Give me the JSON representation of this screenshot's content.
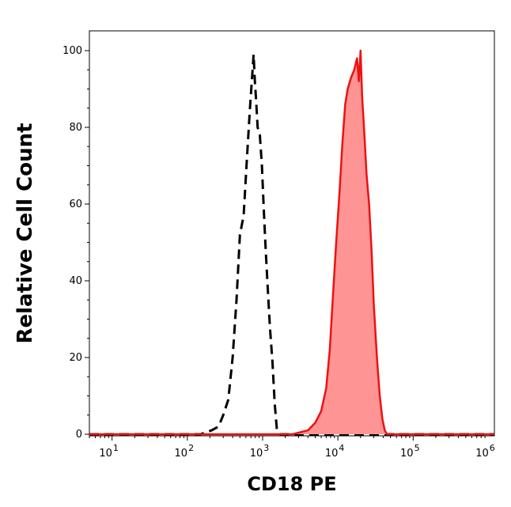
{
  "chart_data": {
    "type": "area",
    "xlabel": "CD18 PE",
    "ylabel": "Relative Cell Count",
    "xscale": "log",
    "xlim": [
      5,
      1200000
    ],
    "ylim": [
      0,
      100
    ],
    "grid": false,
    "y_ticks": [
      0,
      20,
      40,
      60,
      80,
      100
    ],
    "x_ticks": [
      {
        "value": 10,
        "base": "10",
        "exp": "1"
      },
      {
        "value": 100,
        "base": "10",
        "exp": "2"
      },
      {
        "value": 1000,
        "base": "10",
        "exp": "3"
      },
      {
        "value": 10000,
        "base": "10",
        "exp": "4"
      },
      {
        "value": 100000,
        "base": "10",
        "exp": "5"
      },
      {
        "value": 1000000,
        "base": "10",
        "exp": "6"
      }
    ],
    "series": [
      {
        "style": "dashed",
        "color": "#000000",
        "points": [
          [
            5,
            0
          ],
          [
            150,
            0
          ],
          [
            210,
            1
          ],
          [
            260,
            2
          ],
          [
            300,
            5
          ],
          [
            350,
            9
          ],
          [
            400,
            20
          ],
          [
            450,
            35
          ],
          [
            500,
            52
          ],
          [
            560,
            57
          ],
          [
            620,
            72
          ],
          [
            680,
            85
          ],
          [
            730,
            94
          ],
          [
            760,
            99
          ],
          [
            790,
            92
          ],
          [
            820,
            87
          ],
          [
            860,
            80
          ],
          [
            920,
            78
          ],
          [
            980,
            70
          ],
          [
            1040,
            58
          ],
          [
            1100,
            48
          ],
          [
            1170,
            38
          ],
          [
            1250,
            28
          ],
          [
            1350,
            19
          ],
          [
            1450,
            8
          ],
          [
            1550,
            1
          ],
          [
            1700,
            0
          ],
          [
            1200000,
            0
          ]
        ]
      },
      {
        "style": "filled",
        "color": "#ee1111",
        "fill": "#ff9494",
        "points": [
          [
            5,
            0
          ],
          [
            2500,
            0
          ],
          [
            4000,
            1
          ],
          [
            5000,
            3
          ],
          [
            6000,
            6
          ],
          [
            7000,
            12
          ],
          [
            7800,
            22
          ],
          [
            8600,
            36
          ],
          [
            9500,
            50
          ],
          [
            10500,
            63
          ],
          [
            11500,
            76
          ],
          [
            12500,
            86
          ],
          [
            13500,
            90
          ],
          [
            15000,
            93
          ],
          [
            16500,
            95
          ],
          [
            18000,
            98
          ],
          [
            19000,
            92
          ],
          [
            20000,
            100
          ],
          [
            21000,
            88
          ],
          [
            22500,
            78
          ],
          [
            24000,
            68
          ],
          [
            26000,
            60
          ],
          [
            28000,
            48
          ],
          [
            30000,
            34
          ],
          [
            33000,
            20
          ],
          [
            36000,
            10
          ],
          [
            39000,
            4
          ],
          [
            42000,
            1
          ],
          [
            45000,
            0
          ],
          [
            1200000,
            0
          ]
        ]
      }
    ]
  }
}
